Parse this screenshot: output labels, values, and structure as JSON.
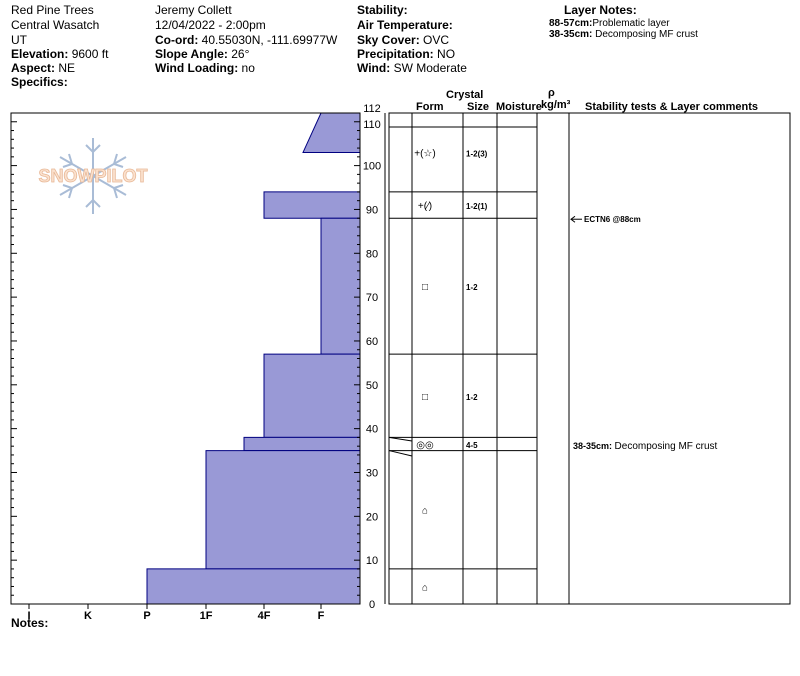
{
  "header": {
    "location": "Red Pine Trees",
    "range": "Central Wasatch",
    "state": "UT",
    "elevation_label": "Elevation:",
    "elevation_value": "9600 ft",
    "aspect_label": "Aspect:",
    "aspect_value": "NE",
    "specifics_label": "Specifics:",
    "observer": "Jeremy  Collett",
    "datetime": "12/04/2022 - 2:00pm",
    "coord_label": "Co-ord:",
    "coord_value": "40.55030N, -111.69977W",
    "slope_label": "Slope Angle:",
    "slope_value": "26°",
    "wind_loading_label": "Wind Loading:",
    "wind_loading_value": "no",
    "stability_label": "Stability:",
    "stability_value": "",
    "air_temp_label": "Air Temperature:",
    "air_temp_value": "",
    "sky_label": "Sky Cover:",
    "sky_value": "OVC",
    "precip_label": "Precipitation:",
    "precip_value": "NO",
    "wind_label": "Wind:",
    "wind_value": "SW Moderate",
    "layer_notes_title": "Layer Notes:",
    "layer_notes": [
      {
        "range": "88-57cm:",
        "text": "Problematic layer"
      },
      {
        "range": "38-35cm:",
        "text": "Decomposing MF crust"
      }
    ]
  },
  "logo_text": "SNOWPILOT",
  "columns": {
    "crystal": "Crystal",
    "form": "Form",
    "size": "Size",
    "moisture": "Moisture",
    "rho": "ρ",
    "density_unit": "kg/m³",
    "stability": "Stability tests & Layer comments"
  },
  "notes_label": "Notes:",
  "colors": {
    "profile_fill": "#9999d6",
    "profile_stroke": "#000080"
  },
  "chart_data": {
    "type": "bar",
    "orientation": "horizontal-step",
    "x_axis_ticks": [
      "I",
      "K",
      "P",
      "1F",
      "4F",
      "F"
    ],
    "y_axis_ticks": [
      0,
      10,
      20,
      30,
      40,
      50,
      60,
      70,
      80,
      90,
      100,
      110,
      112
    ],
    "ylim": [
      0,
      112
    ],
    "hardness_layers": [
      {
        "top": 112,
        "bottom": 103,
        "hardness_top": "F",
        "hardness_bottom": "4F-F"
      },
      {
        "top": 94,
        "bottom": 88,
        "hardness": "4F"
      },
      {
        "top": 88,
        "bottom": 57,
        "hardness": "F"
      },
      {
        "top": 57,
        "bottom": 38,
        "hardness": "4F"
      },
      {
        "top": 38,
        "bottom": 35,
        "hardness": "4F-"
      },
      {
        "top": 35,
        "bottom": 8,
        "hardness": "1F"
      },
      {
        "top": 8,
        "bottom": 0,
        "hardness": "P"
      }
    ],
    "layer_boundaries": [
      112,
      94,
      88,
      57,
      38,
      35,
      8,
      0
    ],
    "crystal_layers": [
      {
        "top": 112,
        "bottom": 94,
        "form": "+(☆)",
        "size": "1-2(3)"
      },
      {
        "top": 94,
        "bottom": 88,
        "form": "+(⁄)",
        "size": "1-2(1)"
      },
      {
        "top": 88,
        "bottom": 57,
        "form": "□",
        "size": "1-2"
      },
      {
        "top": 57,
        "bottom": 38,
        "form": "□",
        "size": "1-2"
      },
      {
        "top": 38,
        "bottom": 35,
        "form": "◎◎",
        "size": "4-5"
      },
      {
        "top": 35,
        "bottom": 8,
        "form": "⌂",
        "size": ""
      },
      {
        "top": 8,
        "bottom": 0,
        "form": "⌂",
        "size": ""
      }
    ],
    "stability_tests": [
      {
        "depth": 88,
        "label": "ECTN6 @88cm"
      }
    ],
    "layer_comments": [
      {
        "depth": 36.5,
        "range": "38-35cm:",
        "text": "Decomposing MF crust"
      }
    ]
  }
}
